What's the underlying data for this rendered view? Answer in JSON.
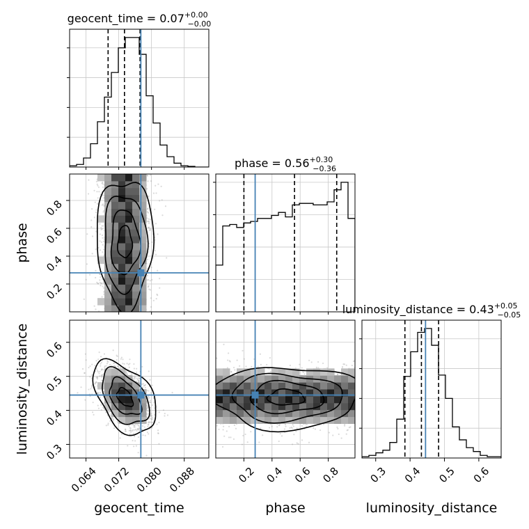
{
  "chart_data": {
    "type": "corner",
    "parameters": [
      "geocent_time",
      "phase",
      "luminosity_distance"
    ],
    "titles": [
      {
        "param": "geocent_time",
        "prefix": "geocent_time = ",
        "value": "0.07",
        "plus": "+0.00",
        "minus": "−0.00"
      },
      {
        "param": "phase",
        "prefix": "phase = ",
        "value": "0.56",
        "plus": "+0.30",
        "minus": "−0.36"
      },
      {
        "param": "luminosity_distance",
        "prefix": "luminosity_distance = ",
        "value": "0.43",
        "plus": "+0.05",
        "minus": "−0.05"
      }
    ],
    "axis_labels": {
      "x": [
        "geocent_time",
        "phase",
        "luminosity_distance"
      ],
      "y": [
        "phase",
        "luminosity_distance"
      ]
    },
    "ranges": {
      "geocent_time": [
        0.06,
        0.094
      ],
      "phase": [
        0.0,
        0.99
      ],
      "luminosity_distance": [
        0.26,
        0.665
      ]
    },
    "ticks": {
      "geocent_time": [
        "0.064",
        "0.072",
        "0.080",
        "0.088"
      ],
      "phase": [
        "0.2",
        "0.4",
        "0.6",
        "0.8"
      ],
      "luminosity_distance": [
        "0.3",
        "0.4",
        "0.5",
        "0.6"
      ]
    },
    "truth": {
      "geocent_time": 0.0774,
      "phase": 0.28,
      "luminosity_distance": 0.445
    },
    "quantiles": {
      "geocent_time": [
        0.0694,
        0.0734,
        0.0772
      ],
      "phase": [
        0.2,
        0.56,
        0.86
      ],
      "luminosity_distance": [
        0.385,
        0.433,
        0.483
      ]
    },
    "histograms": {
      "geocent_time": {
        "edges_range": [
          0.06,
          0.094
        ],
        "bins": 20,
        "counts": [
          0.01,
          0.02,
          0.07,
          0.18,
          0.35,
          0.54,
          0.73,
          0.92,
          1.0,
          1.0,
          0.87,
          0.55,
          0.34,
          0.17,
          0.08,
          0.03,
          0.01,
          0.005,
          0,
          0
        ]
      },
      "phase": {
        "edges_range": [
          0.0,
          0.99
        ],
        "bins": 20,
        "counts": [
          0.31,
          0.57,
          0.58,
          0.56,
          0.59,
          0.6,
          0.62,
          0.62,
          0.64,
          0.66,
          0.63,
          0.71,
          0.72,
          0.72,
          0.71,
          0.71,
          0.73,
          0.81,
          0.86,
          0.62
        ]
      },
      "luminosity_distance": {
        "edges_range": [
          0.26,
          0.665
        ],
        "bins": 20,
        "counts": [
          0.01,
          0.02,
          0.04,
          0.06,
          0.12,
          0.3,
          0.63,
          0.82,
          0.97,
          1.0,
          0.87,
          0.64,
          0.46,
          0.24,
          0.14,
          0.08,
          0.05,
          0.02,
          0.01,
          0.01
        ]
      }
    },
    "grid": true,
    "colors": {
      "truth": "#4682b4",
      "hist": "#000000",
      "scatter": "#999999",
      "grid": "#c8c8c8"
    }
  }
}
